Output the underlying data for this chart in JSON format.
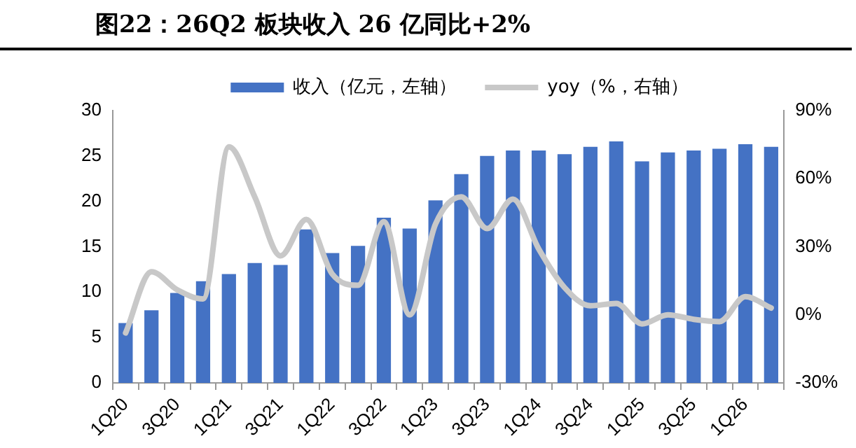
{
  "chart_data": {
    "type": "bar",
    "title": "图22：26Q2 板块收入 26 亿同比+2%",
    "categories": [
      "1Q20",
      null,
      "3Q20",
      null,
      "1Q21",
      null,
      "3Q21",
      null,
      "1Q22",
      null,
      "3Q22",
      null,
      "1Q23",
      null,
      "3Q23",
      null,
      "1Q24",
      null,
      "3Q24",
      null,
      "1Q25",
      null,
      "3Q25",
      null,
      "1Q26",
      null
    ],
    "series": [
      {
        "name": "收入（亿元，左轴）",
        "color": "#4472c4",
        "values": [
          6.6,
          8.0,
          9.9,
          11.2,
          12.0,
          13.2,
          13.0,
          16.9,
          14.3,
          15.1,
          18.2,
          17.0,
          20.1,
          23.0,
          25.0,
          25.6,
          25.6,
          25.2,
          26.0,
          26.6,
          24.4,
          25.4,
          25.6,
          25.8,
          26.3,
          26.0
        ]
      },
      {
        "name": "yoy（%，右轴）",
        "type": "line",
        "axis": "y2",
        "color": "#c8c8c8",
        "values": [
          -8,
          19,
          11,
          7,
          74,
          52,
          26,
          42,
          18,
          13,
          41,
          0,
          40,
          52,
          38,
          51,
          29,
          12,
          4,
          5,
          -4,
          0,
          -2,
          -3,
          8,
          3
        ]
      }
    ],
    "ylim": [
      0,
      30
    ],
    "yticks": [
      0,
      5,
      10,
      15,
      20,
      25,
      30
    ],
    "y2lim": [
      -30,
      90
    ],
    "y2ticks": [
      {
        "value": -30,
        "label": "-30%"
      },
      {
        "value": 0,
        "label": "0%"
      },
      {
        "value": 30,
        "label": "30%"
      },
      {
        "value": 60,
        "label": "60%"
      },
      {
        "value": 90,
        "label": "90%"
      }
    ],
    "grid": false,
    "legend": "top",
    "marker": "none"
  }
}
